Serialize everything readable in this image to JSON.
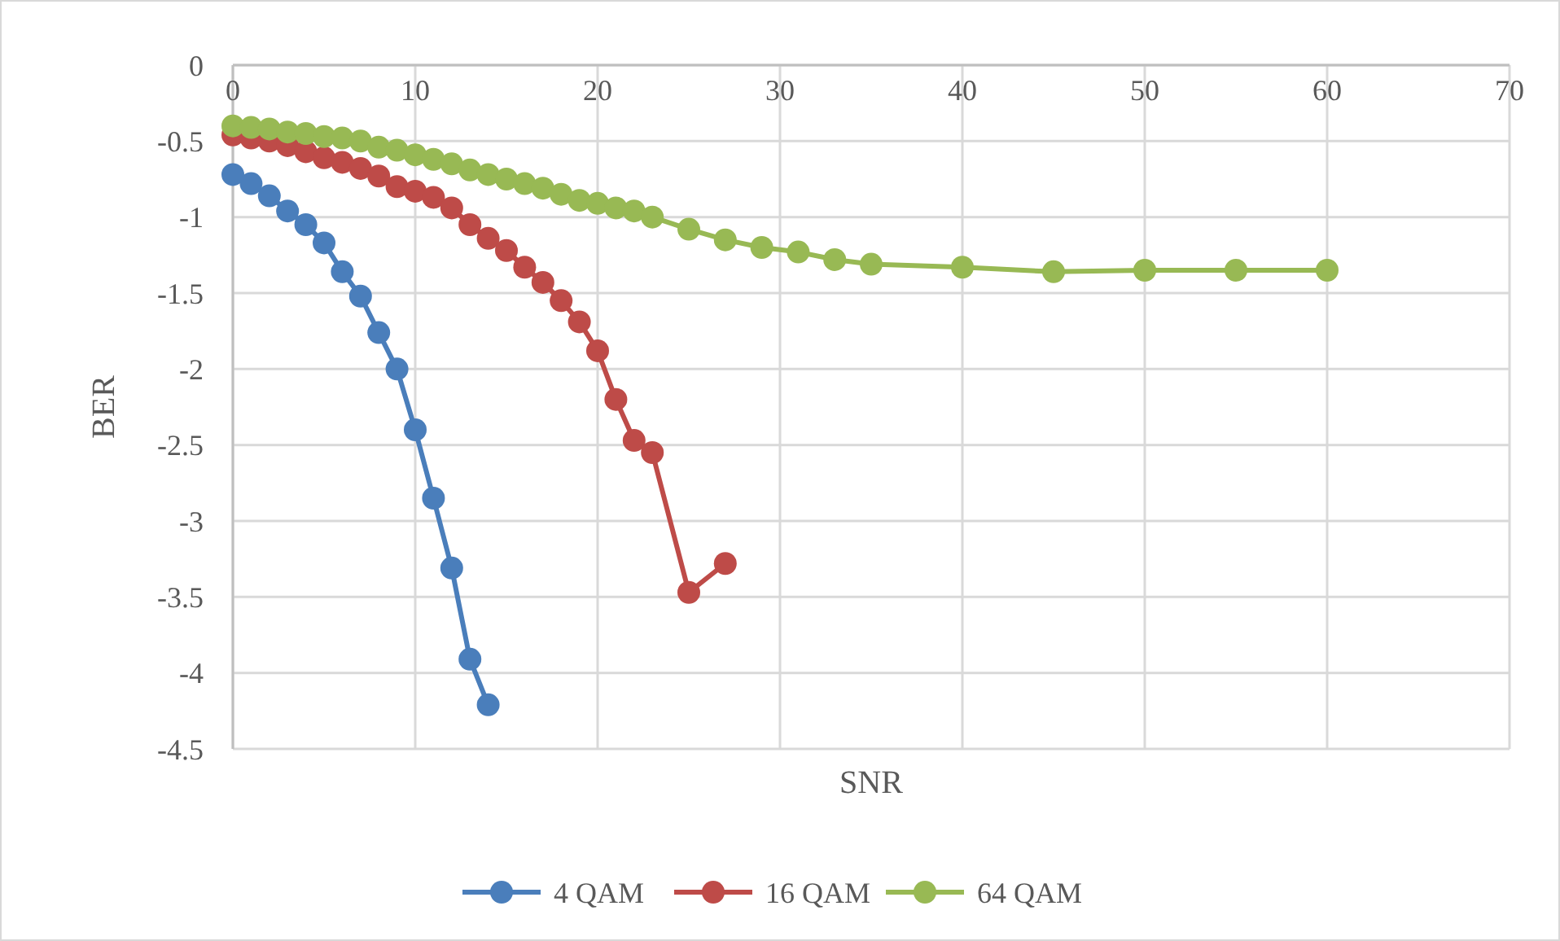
{
  "chart_data": {
    "type": "line",
    "xlabel": "SNR",
    "ylabel": "BER",
    "xlim": [
      0,
      70
    ],
    "xticks": [
      0,
      10,
      20,
      30,
      40,
      50,
      60,
      70
    ],
    "ylim": [
      -4.5,
      0
    ],
    "yticks": [
      -4.5,
      -4,
      -3.5,
      -3,
      -2.5,
      -2,
      -1.5,
      -1,
      -0.5,
      0
    ],
    "grid": true,
    "legend": "bottom",
    "marker": "circle",
    "line_style": "solid",
    "series": [
      {
        "name": "4 QAM",
        "color": "#4a7ebb",
        "x": [
          0,
          1,
          2,
          3,
          4,
          5,
          6,
          7,
          8,
          9,
          10,
          11,
          12,
          13,
          14
        ],
        "values": [
          -0.72,
          -0.78,
          -0.86,
          -0.96,
          -1.05,
          -1.17,
          -1.36,
          -1.52,
          -1.76,
          -2.0,
          -2.4,
          -2.85,
          -3.31,
          -3.91,
          -4.21
        ]
      },
      {
        "name": "16 QAM",
        "color": "#be4b48",
        "x": [
          0,
          1,
          2,
          3,
          4,
          5,
          6,
          7,
          8,
          9,
          10,
          11,
          12,
          13,
          14,
          15,
          16,
          17,
          18,
          19,
          20,
          21,
          22,
          23,
          25,
          27
        ],
        "values": [
          -0.46,
          -0.48,
          -0.5,
          -0.53,
          -0.57,
          -0.61,
          -0.64,
          -0.68,
          -0.73,
          -0.8,
          -0.83,
          -0.87,
          -0.94,
          -1.05,
          -1.14,
          -1.22,
          -1.33,
          -1.43,
          -1.55,
          -1.69,
          -1.88,
          -2.2,
          -2.47,
          -2.55,
          -3.47,
          -3.28
        ]
      },
      {
        "name": "64 QAM",
        "color": "#98b954",
        "x": [
          0,
          1,
          2,
          3,
          4,
          5,
          6,
          7,
          8,
          9,
          10,
          11,
          12,
          13,
          14,
          15,
          16,
          17,
          18,
          19,
          20,
          21,
          22,
          23,
          25,
          27,
          29,
          31,
          33,
          35,
          40,
          45,
          50,
          55,
          60
        ],
        "values": [
          -0.4,
          -0.41,
          -0.42,
          -0.44,
          -0.45,
          -0.47,
          -0.48,
          -0.5,
          -0.54,
          -0.56,
          -0.59,
          -0.62,
          -0.65,
          -0.69,
          -0.72,
          -0.75,
          -0.78,
          -0.81,
          -0.85,
          -0.89,
          -0.91,
          -0.94,
          -0.96,
          -1.0,
          -1.08,
          -1.15,
          -1.2,
          -1.23,
          -1.28,
          -1.31,
          -1.33,
          -1.36,
          -1.35,
          -1.35,
          -1.35
        ]
      }
    ]
  }
}
